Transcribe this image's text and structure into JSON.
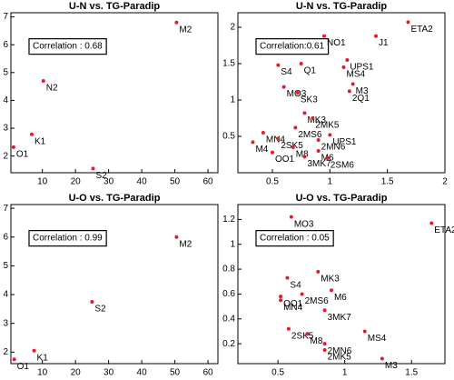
{
  "chart_data": [
    {
      "type": "scatter",
      "title": "U-N vs. TG-Paradip",
      "annotation": "Correlation : 0.68",
      "color": "#e8192c",
      "x": [
        50.5,
        1.3,
        6.8,
        10.3,
        25.3
      ],
      "y": [
        6.8,
        2.32,
        2.78,
        4.7,
        1.55
      ],
      "labels": [
        "M2",
        "O1",
        "K1",
        "N2",
        "S2"
      ],
      "xlim": [
        0.5,
        63
      ],
      "ylim": [
        1.4,
        7.15
      ],
      "xticks": [
        10,
        20,
        30,
        40,
        50,
        60
      ],
      "yticks": [
        2,
        3,
        4,
        5,
        6,
        7
      ]
    },
    {
      "type": "scatter",
      "title": "U-N vs. TG-Paradip",
      "annotation": "Correlation:0.61",
      "color": "#e8192c",
      "x": [
        1.68,
        1.4,
        0.95,
        1.15,
        1.12,
        0.55,
        0.75,
        0.6,
        0.72,
        1.2,
        1.17,
        0.78,
        0.85,
        0.42,
        0.7,
        0.55,
        0.33,
        1.0,
        0.9,
        0.68,
        0.5,
        0.9,
        0.78,
        0.98
      ],
      "y": [
        2.07,
        1.88,
        1.88,
        1.55,
        1.45,
        1.48,
        1.5,
        1.18,
        1.1,
        1.22,
        1.12,
        0.82,
        0.75,
        0.55,
        0.62,
        0.47,
        0.42,
        0.52,
        0.45,
        0.35,
        0.28,
        0.3,
        0.22,
        0.2
      ],
      "labels": [
        "ETA2",
        "J1",
        "NO1",
        "UPS1",
        "MS4",
        "S4",
        "Q1",
        "MO3",
        "SK3",
        "M3",
        "2Q1",
        "MK3",
        "2MK5",
        "MN4",
        "2MS6",
        "2SK5",
        "M4",
        "UPS1",
        "2MN6",
        "M8",
        "OO1",
        "M6",
        "3MK7",
        "2SM6"
      ],
      "xlim": [
        0.2,
        2
      ],
      "ylim": [
        0,
        2.2
      ],
      "xticks": [
        0.5,
        1,
        1.5,
        2
      ],
      "yticks": [
        0.5,
        1,
        1.5,
        2
      ]
    },
    {
      "type": "scatter",
      "title": "U-O vs. TG-Paradip",
      "annotation": "Correlation : 0.99",
      "color": "#e8192c",
      "x": [
        50.5,
        25,
        7.5,
        1.5
      ],
      "y": [
        6.0,
        3.75,
        2.05,
        1.75
      ],
      "labels": [
        "M2",
        "S2",
        "K1",
        "O1"
      ],
      "xlim": [
        0.5,
        63
      ],
      "ylim": [
        1.6,
        7.13
      ],
      "xticks": [
        10,
        20,
        30,
        40,
        50,
        60
      ],
      "yticks": [
        2,
        3,
        4,
        5,
        6,
        7
      ]
    },
    {
      "type": "scatter",
      "title": "U-O vs. TG-Paradip",
      "annotation": "Correlation : 0.05",
      "color": "#e8192c",
      "x": [
        0.6,
        1.65,
        0.8,
        0.57,
        0.9,
        0.52,
        0.68,
        0.52,
        0.85,
        0.58,
        1.15,
        0.72,
        0.85,
        0.85,
        1.28
      ],
      "y": [
        1.22,
        1.17,
        0.78,
        0.73,
        0.63,
        0.58,
        0.6,
        0.55,
        0.47,
        0.32,
        0.3,
        0.28,
        0.2,
        0.15,
        0.08
      ],
      "labels": [
        "MO3",
        "ETA2",
        "MK3",
        "S4",
        "M6",
        "OO1",
        "2MS6",
        "MN4",
        "3MK7",
        "2SK5",
        "MS4",
        "M8",
        "2MN6",
        "2MK5",
        "M3"
      ],
      "xlim": [
        0.2,
        1.75
      ],
      "ylim": [
        0.04,
        1.32
      ],
      "xticks": [
        0.5,
        1,
        1.5
      ],
      "yticks": [
        0.2,
        0.4,
        0.6,
        0.8,
        1,
        1.2
      ]
    }
  ]
}
